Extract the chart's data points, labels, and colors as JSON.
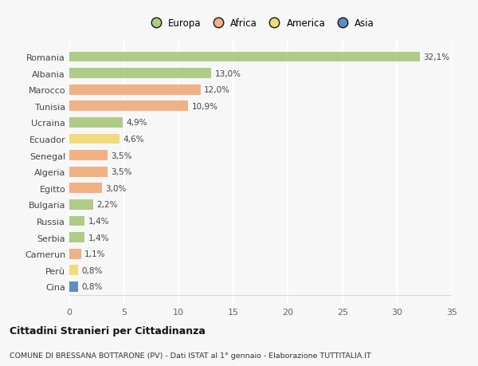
{
  "countries": [
    "Romania",
    "Albania",
    "Marocco",
    "Tunisia",
    "Ucraina",
    "Ecuador",
    "Senegal",
    "Algeria",
    "Egitto",
    "Bulgaria",
    "Russia",
    "Serbia",
    "Camerun",
    "Perù",
    "Cina"
  ],
  "values": [
    32.1,
    13.0,
    12.0,
    10.9,
    4.9,
    4.6,
    3.5,
    3.5,
    3.0,
    2.2,
    1.4,
    1.4,
    1.1,
    0.8,
    0.8
  ],
  "labels": [
    "32,1%",
    "13,0%",
    "12,0%",
    "10,9%",
    "4,9%",
    "4,6%",
    "3,5%",
    "3,5%",
    "3,0%",
    "2,2%",
    "1,4%",
    "1,4%",
    "1,1%",
    "0,8%",
    "0,8%"
  ],
  "continents": [
    "Europa",
    "Europa",
    "Africa",
    "Africa",
    "Europa",
    "America",
    "Africa",
    "Africa",
    "Africa",
    "Europa",
    "Europa",
    "Europa",
    "Africa",
    "America",
    "Asia"
  ],
  "colors": {
    "Europa": "#a8c87a",
    "Africa": "#f0aa78",
    "America": "#f0d870",
    "Asia": "#5080c0"
  },
  "bg_color": "#f7f7f7",
  "title": "Cittadini Stranieri per Cittadinanza",
  "subtitle": "COMUNE DI BRESSANA BOTTARONE (PV) - Dati ISTAT al 1° gennaio - Elaborazione TUTTITALIA.IT",
  "xlim": [
    0,
    35
  ],
  "xticks": [
    0,
    5,
    10,
    15,
    20,
    25,
    30,
    35
  ],
  "legend_order": [
    "Europa",
    "Africa",
    "America",
    "Asia"
  ]
}
